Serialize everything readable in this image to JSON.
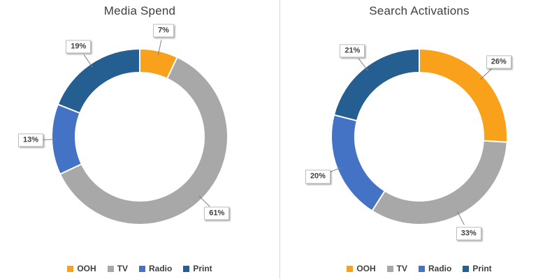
{
  "styles": {
    "label_text_color": "#404040",
    "leader_line_color": "#808080",
    "divider_color": "#d6d6d6",
    "title_color": "#3f3f3f",
    "segment_border_color": "#ffffff"
  },
  "chart_data": [
    {
      "type": "pie",
      "subtype": "donut",
      "title": "Media Spend",
      "categories": [
        "OOH",
        "TV",
        "Radio",
        "Print"
      ],
      "values": [
        7,
        61,
        13,
        19
      ],
      "labels": [
        "7%",
        "61%",
        "13%",
        "19%"
      ],
      "colors": [
        "#F9A11B",
        "#A8A8A8",
        "#4472C4",
        "#255E91"
      ],
      "start_angle_deg": 0,
      "direction": "clockwise",
      "legend_position": "bottom",
      "hole_ratio": 0.73
    },
    {
      "type": "pie",
      "subtype": "donut",
      "title": "Search Activations",
      "categories": [
        "OOH",
        "TV",
        "Radio",
        "Print"
      ],
      "values": [
        26,
        33,
        20,
        21
      ],
      "labels": [
        "26%",
        "33%",
        "20%",
        "21%"
      ],
      "colors": [
        "#F9A11B",
        "#A8A8A8",
        "#4472C4",
        "#255E91"
      ],
      "start_angle_deg": 0,
      "direction": "clockwise",
      "legend_position": "bottom",
      "hole_ratio": 0.73
    }
  ]
}
